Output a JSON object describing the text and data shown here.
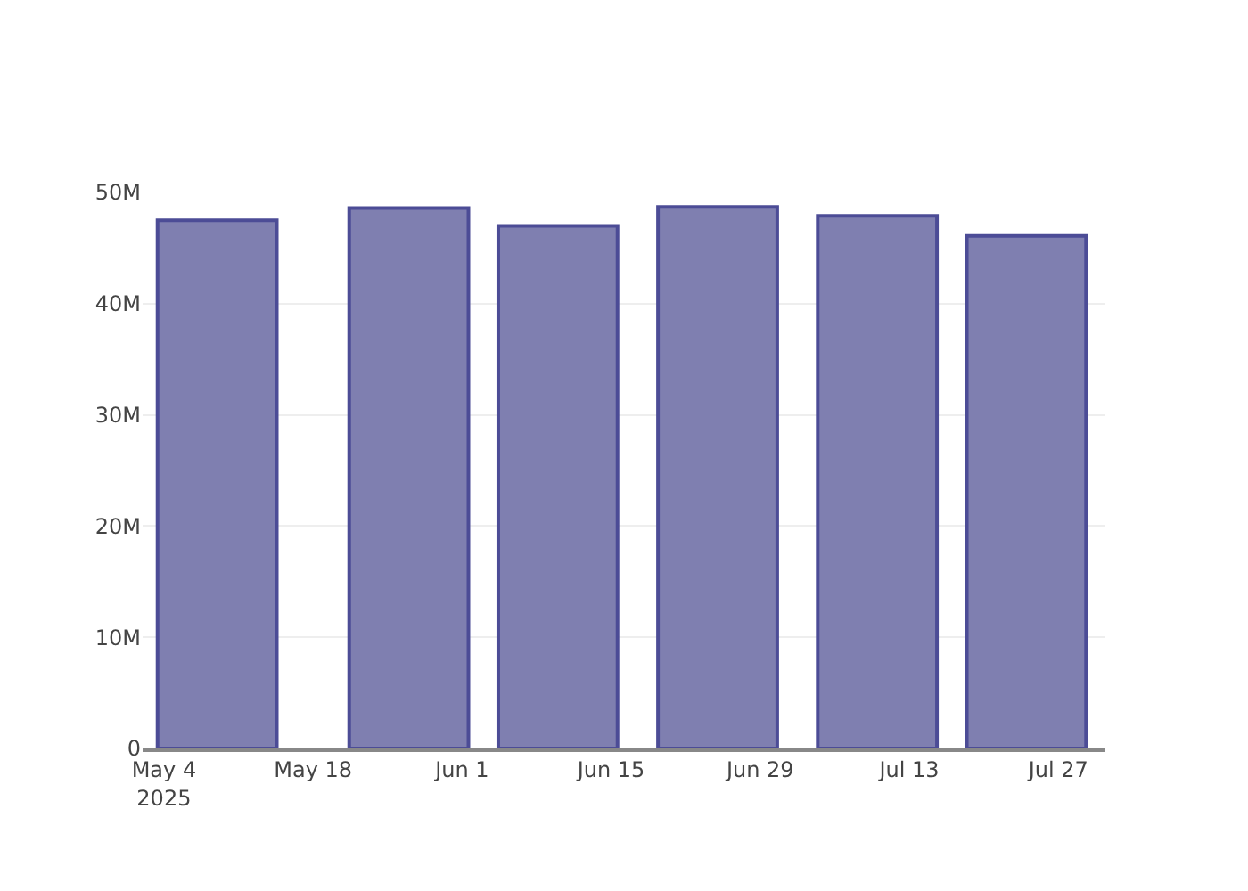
{
  "chart_data": {
    "type": "bar",
    "x": [
      "2025-05-09",
      "2025-05-27",
      "2025-06-10",
      "2025-06-25",
      "2025-07-10",
      "2025-07-24"
    ],
    "series": [
      {
        "color": "#7f7fb0",
        "values": [
          47500000,
          48600000,
          47000000,
          48700000,
          47900000,
          46100000
        ]
      }
    ],
    "xlim": [
      "2025-05-02",
      "2025-07-31T10:00"
    ],
    "xticks": [
      {
        "value": "2025-05-04",
        "label": "May 4\n2025"
      },
      {
        "value": "2025-05-18",
        "label": "May 18"
      },
      {
        "value": "2025-06-01",
        "label": "Jun 1"
      },
      {
        "value": "2025-06-15",
        "label": "Jun 15"
      },
      {
        "value": "2025-06-29",
        "label": "Jun 29"
      },
      {
        "value": "2025-07-13",
        "label": "Jul 13"
      },
      {
        "value": "2025-07-27",
        "label": "Jul 27"
      }
    ],
    "ylim": [
      0,
      50000000
    ],
    "yticks": [
      0,
      {
        "value": 10000000,
        "label": "10M"
      },
      {
        "value": 20000000,
        "label": "20M"
      },
      {
        "value": 30000000,
        "label": "30M"
      },
      {
        "value": 40000000,
        "label": "40M"
      },
      {
        "value": 50000000,
        "label": "50M"
      }
    ],
    "grid": "y"
  }
}
